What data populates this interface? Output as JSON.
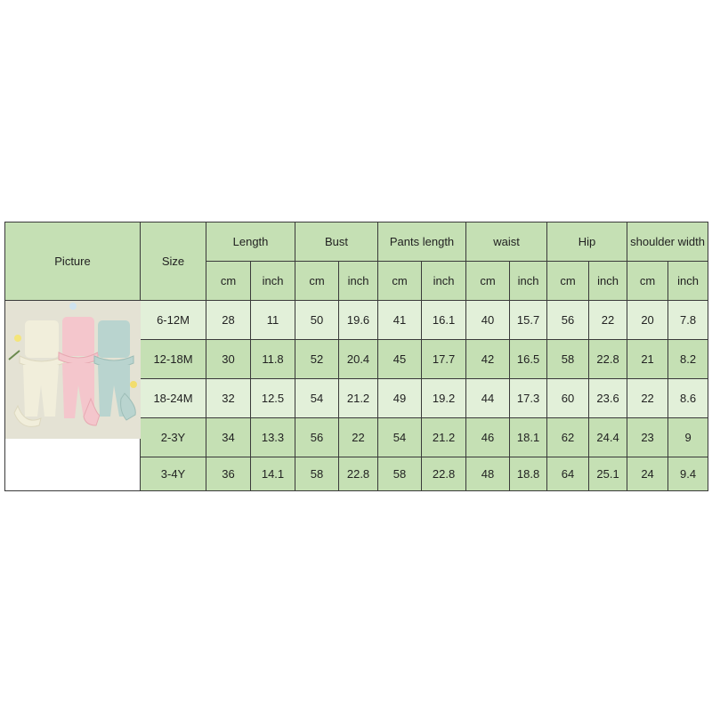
{
  "table": {
    "picture_label": "Picture",
    "size_label": "Size",
    "groups": [
      "Length",
      "Bust",
      "Pants length",
      "waist",
      "Hip",
      "shoulder width"
    ],
    "units": [
      "cm",
      "inch"
    ],
    "rows": [
      {
        "size": "6-12M",
        "values": [
          "28",
          "11",
          "50",
          "19.6",
          "41",
          "16.1",
          "40",
          "15.7",
          "56",
          "22",
          "20",
          "7.8"
        ]
      },
      {
        "size": "12-18M",
        "values": [
          "30",
          "11.8",
          "52",
          "20.4",
          "45",
          "17.7",
          "42",
          "16.5",
          "58",
          "22.8",
          "21",
          "8.2"
        ]
      },
      {
        "size": "18-24M",
        "values": [
          "32",
          "12.5",
          "54",
          "21.2",
          "49",
          "19.2",
          "44",
          "17.3",
          "60",
          "23.6",
          "22",
          "8.6"
        ]
      },
      {
        "size": "2-3Y",
        "values": [
          "34",
          "13.3",
          "56",
          "22",
          "54",
          "21.2",
          "46",
          "18.1",
          "62",
          "24.4",
          "23",
          "9"
        ]
      },
      {
        "size": "3-4Y",
        "values": [
          "36",
          "14.1",
          "58",
          "22.8",
          "58",
          "22.8",
          "48",
          "18.8",
          "64",
          "25.1",
          "24",
          "9.4"
        ]
      }
    ]
  },
  "colors": {
    "header": "#c5e0b4",
    "row_light": "#e2f0d9",
    "row_dark": "#c5e0b4",
    "outfits": [
      "#f1eedb",
      "#f4c6cc",
      "#b9d4cf"
    ]
  }
}
